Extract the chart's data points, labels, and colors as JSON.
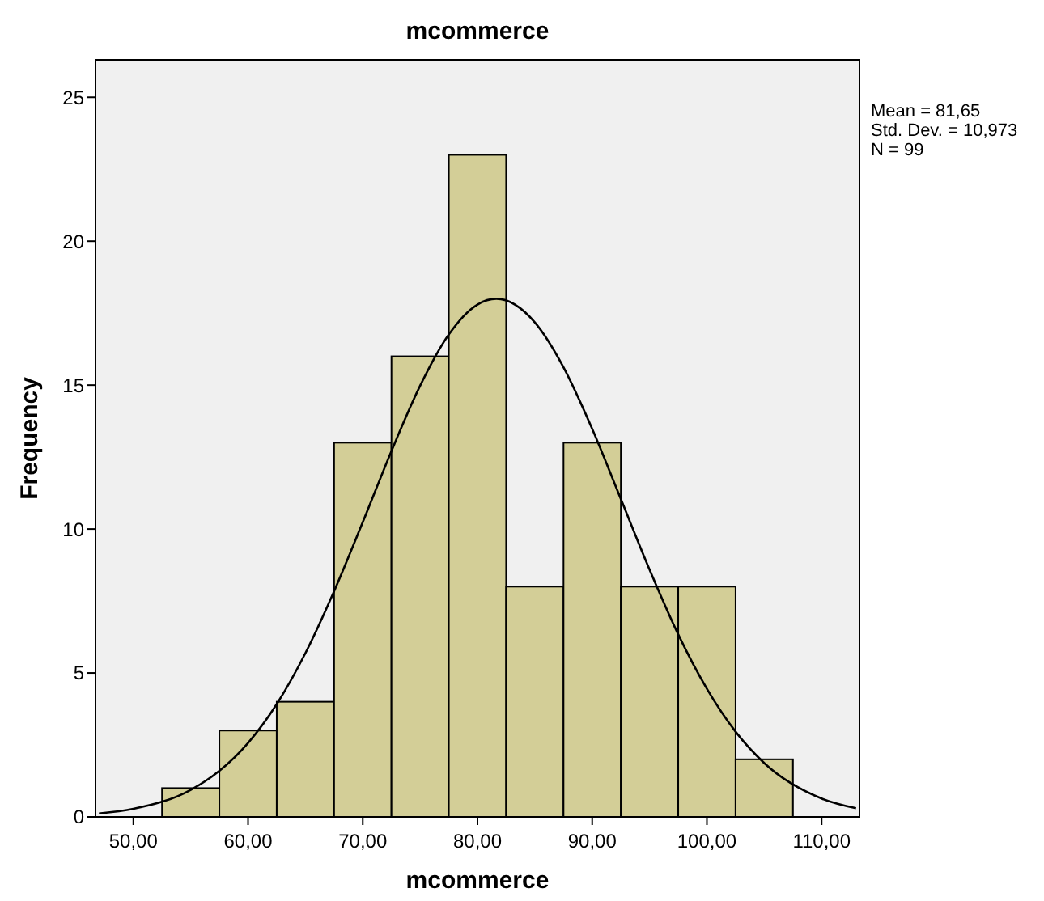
{
  "chart_data": {
    "type": "histogram",
    "title": "mcommerce",
    "xlabel": "mcommerce",
    "ylabel": "Frequency",
    "bins": [
      52.5,
      57.5,
      62.5,
      67.5,
      72.5,
      77.5,
      82.5,
      87.5,
      92.5,
      97.5,
      102.5,
      107.5
    ],
    "series": [
      {
        "color": "#d3ce97",
        "values": [
          1,
          3,
          4,
          13,
          16,
          23,
          8,
          13,
          8,
          8,
          2
        ]
      },
      {
        "type": "line",
        "color": "#000000",
        "x": [
          47,
          50,
          55,
          57.5,
          60,
          62.5,
          65,
          67.5,
          70,
          72.5,
          75,
          77.5,
          80,
          81.65,
          85,
          87.5,
          90,
          92.5,
          95,
          97.5,
          100,
          102.5,
          105,
          110,
          113
        ],
        "values": [
          0.12,
          0.28,
          0.94,
          1.6,
          2.57,
          3.92,
          5.69,
          7.84,
          10.24,
          12.71,
          14.98,
          16.76,
          17.8,
          18,
          17.18,
          15.62,
          13.48,
          11.04,
          8.59,
          6.34,
          4.45,
          2.96,
          1.87,
          0.64,
          0.3
        ]
      }
    ],
    "xlim": [
      46.7,
      113.3
    ],
    "xticks": [
      {
        "value": 50,
        "label": "50,00"
      },
      {
        "value": 60,
        "label": "60,00"
      },
      {
        "value": 70,
        "label": "70,00"
      },
      {
        "value": 80,
        "label": "80,00"
      },
      {
        "value": 90,
        "label": "90,00"
      },
      {
        "value": 100,
        "label": "100,00"
      },
      {
        "value": 110,
        "label": "110,00"
      }
    ],
    "ylim": [
      0,
      26.3
    ],
    "yticks": [
      0,
      5,
      10,
      15,
      20,
      25
    ],
    "grid": false,
    "annotations": [
      "Mean = 81,65",
      "Std. Dev. = 10,973",
      "N = 99"
    ]
  }
}
